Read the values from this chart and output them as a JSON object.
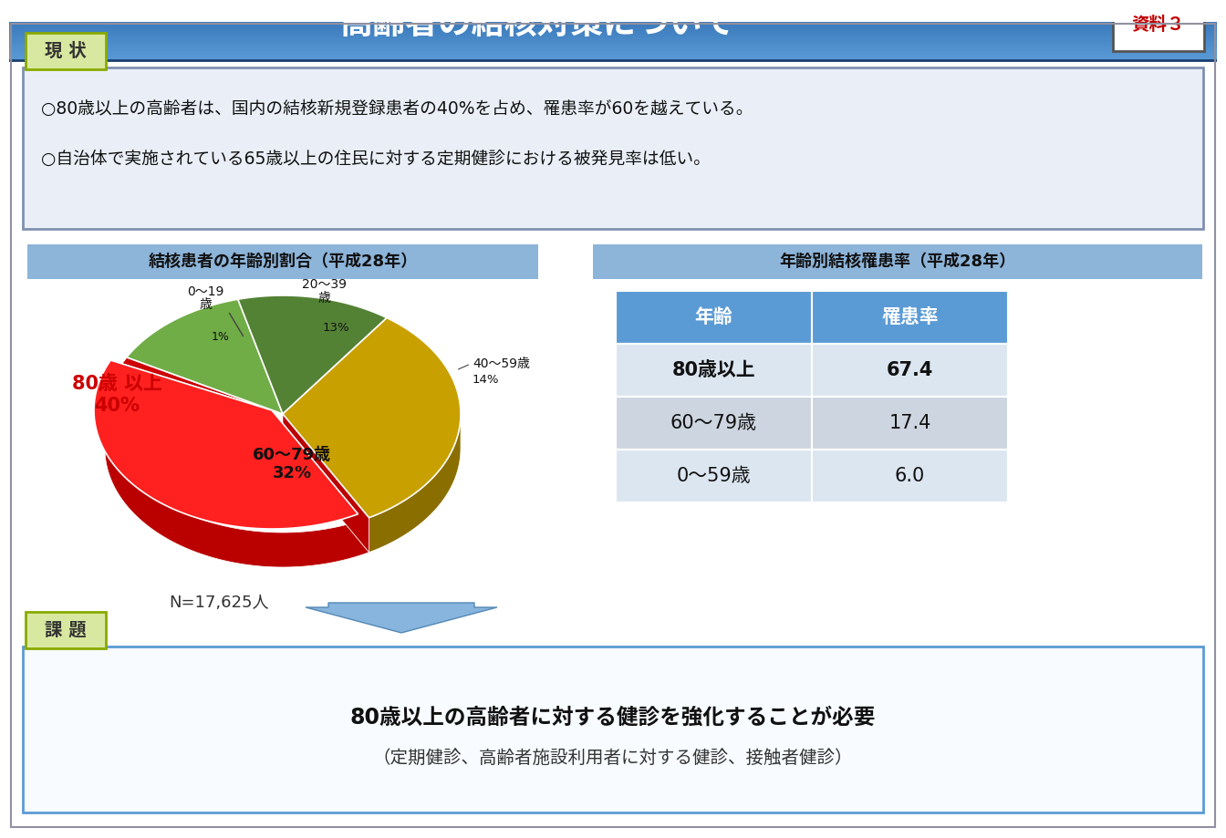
{
  "title": "高齢者の結核対策について",
  "resource_label": "資料３",
  "bg_color": "#ffffff",
  "header_grad_top": "#5b9bd5",
  "header_grad_bottom": "#2060a0",
  "genjyo_label": "現 状",
  "genjyo_text1": "○80歳以上の高齢者は、国内の結核新規登録患者の40%を占め、罹患率が60を越えている。",
  "genjyo_text2": "○自治体で実施されている65歳以上の住民に対する定期健診における被発見率は低い。",
  "pie_title": "結核患者の年齢別割合（平成28年）",
  "pie_values": [
    1,
    13,
    14,
    32,
    40
  ],
  "pie_colors_top": [
    "#c00000",
    "#70ad47",
    "#548235",
    "#c8a000",
    "#ff0000"
  ],
  "pie_colors_side": [
    "#7b0000",
    "#4a7c24",
    "#385521",
    "#8b6f00",
    "#aa0000"
  ],
  "pie_note": "N=17,625人",
  "table_title": "年齢別結核罹患率（平成28年）",
  "table_header": [
    "年齢",
    "罹患率"
  ],
  "table_rows": [
    [
      "80歳以上",
      "67.4"
    ],
    [
      "60～79歳",
      "17.4"
    ],
    [
      "0～59歳",
      "6.0"
    ]
  ],
  "table_header_color": "#5b9bd5",
  "table_row_colors": [
    "#dce6f1",
    "#cdd5e0",
    "#dce6f1"
  ],
  "kadai_label": "課 題",
  "kadai_text1": "80歳以上の高齢者に対する健診を強化することが必要",
  "kadai_text2": "（定期健診、高齢者施設利用者に対する健診、接触者健診）",
  "arrow_color": "#5b9bd5",
  "section_bg": "#e8eef8",
  "section_border": "#5b9bd5",
  "label_tab_bg": "#d9e8a0",
  "label_tab_border": "#8aaa00"
}
